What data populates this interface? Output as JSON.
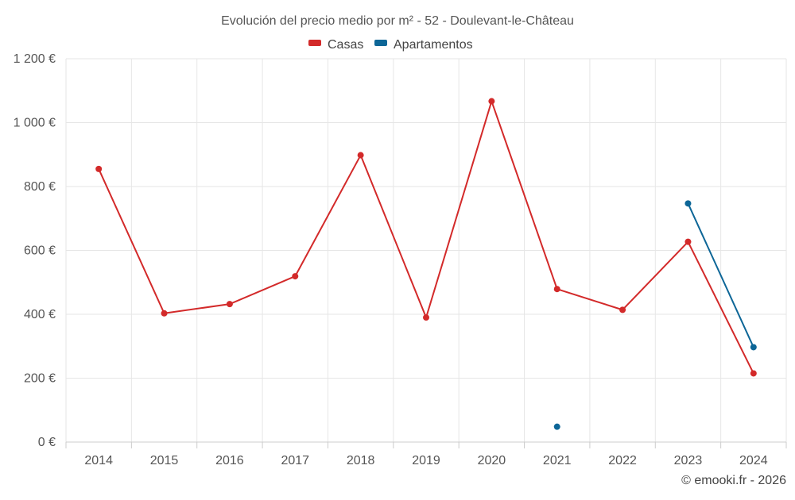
{
  "chart_data": {
    "type": "line",
    "title": "Evolución del precio medio por m² - 52 - Doulevant-le-Château",
    "categories": [
      "2014",
      "2015",
      "2016",
      "2017",
      "2018",
      "2019",
      "2020",
      "2021",
      "2022",
      "2023",
      "2024"
    ],
    "series": [
      {
        "name": "Casas",
        "color": "#d32a2a",
        "values": [
          855,
          403,
          432,
          519,
          898,
          390,
          1067,
          479,
          414,
          627,
          215
        ]
      },
      {
        "name": "Apartamentos",
        "color": "#0d6697",
        "values": [
          null,
          null,
          null,
          null,
          null,
          null,
          null,
          48,
          null,
          747,
          297
        ]
      }
    ],
    "ylim": [
      0,
      1200
    ],
    "yticks": [
      {
        "value": 0,
        "label": "0 €"
      },
      {
        "value": 200,
        "label": "200 €"
      },
      {
        "value": 400,
        "label": "400 €"
      },
      {
        "value": 600,
        "label": "600 €"
      },
      {
        "value": 800,
        "label": "800 €"
      },
      {
        "value": 1000,
        "label": "1 000 €"
      },
      {
        "value": 1200,
        "label": "1 200 €"
      }
    ],
    "grid": true,
    "legend_position": "top-center",
    "credit": "© emooki.fr - 2026"
  }
}
